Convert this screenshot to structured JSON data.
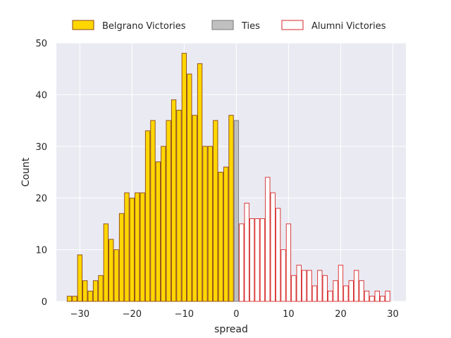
{
  "chart_data": {
    "type": "bar",
    "title": "",
    "xlabel": "spread",
    "ylabel": "Count",
    "xlim": [
      -34.5,
      32.5
    ],
    "ylim": [
      0,
      50
    ],
    "xticks": [
      -30,
      -20,
      -10,
      0,
      10,
      20,
      30
    ],
    "yticks": [
      0,
      10,
      20,
      30,
      40,
      50
    ],
    "grid": true,
    "legend_position": "top-center",
    "bin_width": 1,
    "series": [
      {
        "name": "Belgrano Victories",
        "fill": "#FFD700",
        "edge": "#8B4513",
        "x": [
          -32,
          -31,
          -30,
          -29,
          -28,
          -27,
          -26,
          -25,
          -24,
          -23,
          -22,
          -21,
          -20,
          -19,
          -18,
          -17,
          -16,
          -15,
          -14,
          -13,
          -12,
          -11,
          -10,
          -9,
          -8,
          -7,
          -6,
          -5,
          -4,
          -3,
          -2,
          -1
        ],
        "values": [
          1,
          1,
          9,
          4,
          2,
          4,
          5,
          15,
          12,
          10,
          17,
          21,
          20,
          21,
          21,
          33,
          35,
          27,
          30,
          35,
          39,
          37,
          48,
          44,
          36,
          46,
          30,
          30,
          35,
          25,
          26,
          36
        ]
      },
      {
        "name": "Ties",
        "fill": "#C0C0C0",
        "edge": "#777777",
        "x": [
          0
        ],
        "values": [
          35
        ]
      },
      {
        "name": "Alumni Victories",
        "fill": "#FFFFFF",
        "edge": "#D62728",
        "x": [
          1,
          2,
          3,
          4,
          5,
          6,
          7,
          8,
          9,
          10,
          11,
          12,
          13,
          14,
          15,
          16,
          17,
          18,
          19,
          20,
          21,
          22,
          23,
          24,
          25,
          26,
          27,
          28,
          29
        ],
        "values": [
          15,
          19,
          16,
          16,
          16,
          24,
          21,
          18,
          10,
          15,
          5,
          7,
          6,
          6,
          3,
          6,
          5,
          2,
          4,
          7,
          3,
          4,
          6,
          4,
          2,
          1,
          2,
          1,
          2
        ]
      }
    ],
    "colors": {
      "plot_background": "#EAEAF2",
      "grid": "#FFFFFF",
      "text": "#262626"
    }
  }
}
